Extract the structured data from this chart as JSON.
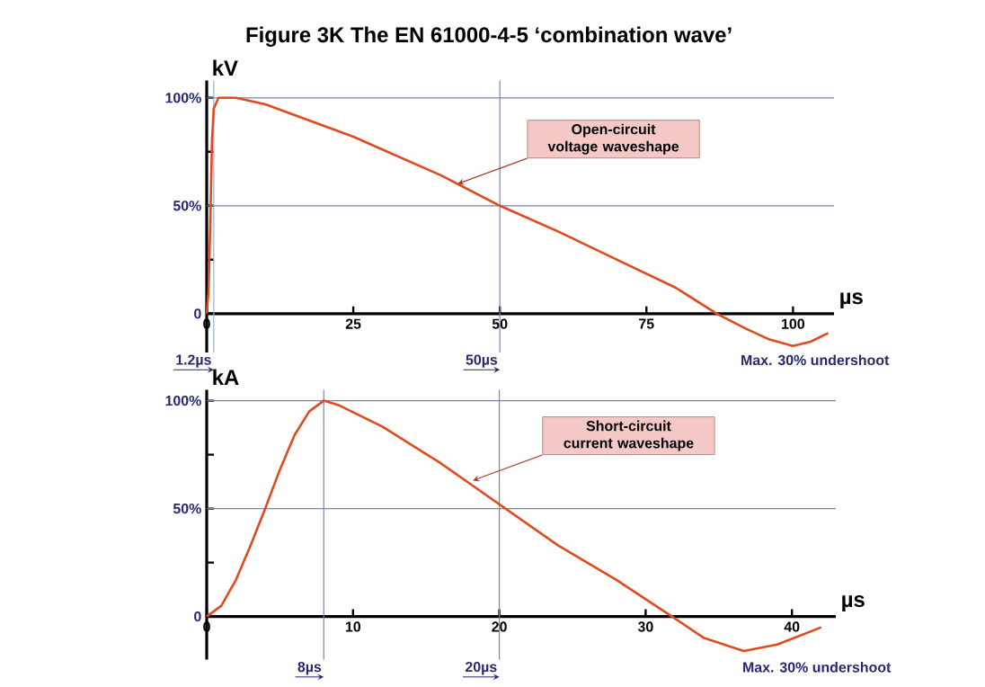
{
  "chart_data": [
    {
      "type": "line",
      "title": "Figure 3K    The EN 61000-4-5 ‘combination wave’",
      "xlabel": "µs",
      "ylabel": "kV",
      "x": [
        0,
        0.3,
        0.6,
        0.9,
        1.2,
        2,
        5,
        10,
        25,
        40,
        50,
        60,
        70,
        80,
        87,
        92,
        96,
        100,
        103,
        106
      ],
      "series": [
        {
          "color": "#e04a1e",
          "values": [
            0,
            10,
            40,
            80,
            95,
            100,
            100,
            97,
            82,
            64,
            50,
            38,
            25,
            12,
            0,
            -7,
            -12,
            -15,
            -13,
            -9
          ]
        }
      ],
      "xlim": [
        0,
        107
      ],
      "ylim": [
        -18,
        108
      ],
      "xticks": [
        0,
        25,
        50,
        75,
        100
      ],
      "yticks": [
        {
          "value": 0,
          "label": "0"
        },
        {
          "value": 25,
          "label": null
        },
        {
          "value": 50,
          "label": "50%"
        },
        {
          "value": 75,
          "label": null
        },
        {
          "value": 100,
          "label": "100%"
        }
      ],
      "ref_lines": [
        {
          "axis": "y",
          "value": 50,
          "color": "#7a86a8"
        },
        {
          "axis": "y",
          "value": 100,
          "color": "#7a86a8"
        },
        {
          "axis": "x",
          "value": 1.2,
          "label": "1.2µs",
          "color": "#8fb4e0"
        },
        {
          "axis": "x",
          "value": 50,
          "label": "50µs",
          "color": "#7a86a8"
        }
      ],
      "annotations": [
        "Open-circuit voltage waveshape",
        "Max. 30% undershoot"
      ]
    },
    {
      "type": "line",
      "xlabel": "µs",
      "ylabel": "kA",
      "x": [
        0,
        1,
        2,
        3,
        4,
        5,
        6,
        7,
        8,
        9,
        12,
        16,
        20,
        24,
        28,
        31.8,
        34,
        36.7,
        39,
        42
      ],
      "series": [
        {
          "color": "#e04a1e",
          "values": [
            0,
            5,
            17,
            33,
            50,
            68,
            84,
            95,
            100,
            98,
            88,
            71,
            52,
            33,
            17,
            0,
            -10,
            -16,
            -13,
            -5
          ]
        }
      ],
      "xlim": [
        0,
        43
      ],
      "ylim": [
        -20,
        105
      ],
      "xticks": [
        0,
        10,
        20,
        30,
        40
      ],
      "yticks": [
        {
          "value": 0,
          "label": "0"
        },
        {
          "value": 25,
          "label": null
        },
        {
          "value": 50,
          "label": "50%"
        },
        {
          "value": 75,
          "label": null
        },
        {
          "value": 100,
          "label": "100%"
        }
      ],
      "ref_lines": [
        {
          "axis": "y",
          "value": 50,
          "color": "#7a86a8"
        },
        {
          "axis": "y",
          "value": 100,
          "color": "#7a86a8"
        },
        {
          "axis": "x",
          "value": 8,
          "label": "8µs",
          "color": "#7a86a8"
        },
        {
          "axis": "x",
          "value": 20,
          "label": "20µs",
          "color": "#7a86a8"
        }
      ],
      "annotations": [
        "Short-circuit current waveshape",
        "Max. 30% undershoot"
      ]
    }
  ]
}
